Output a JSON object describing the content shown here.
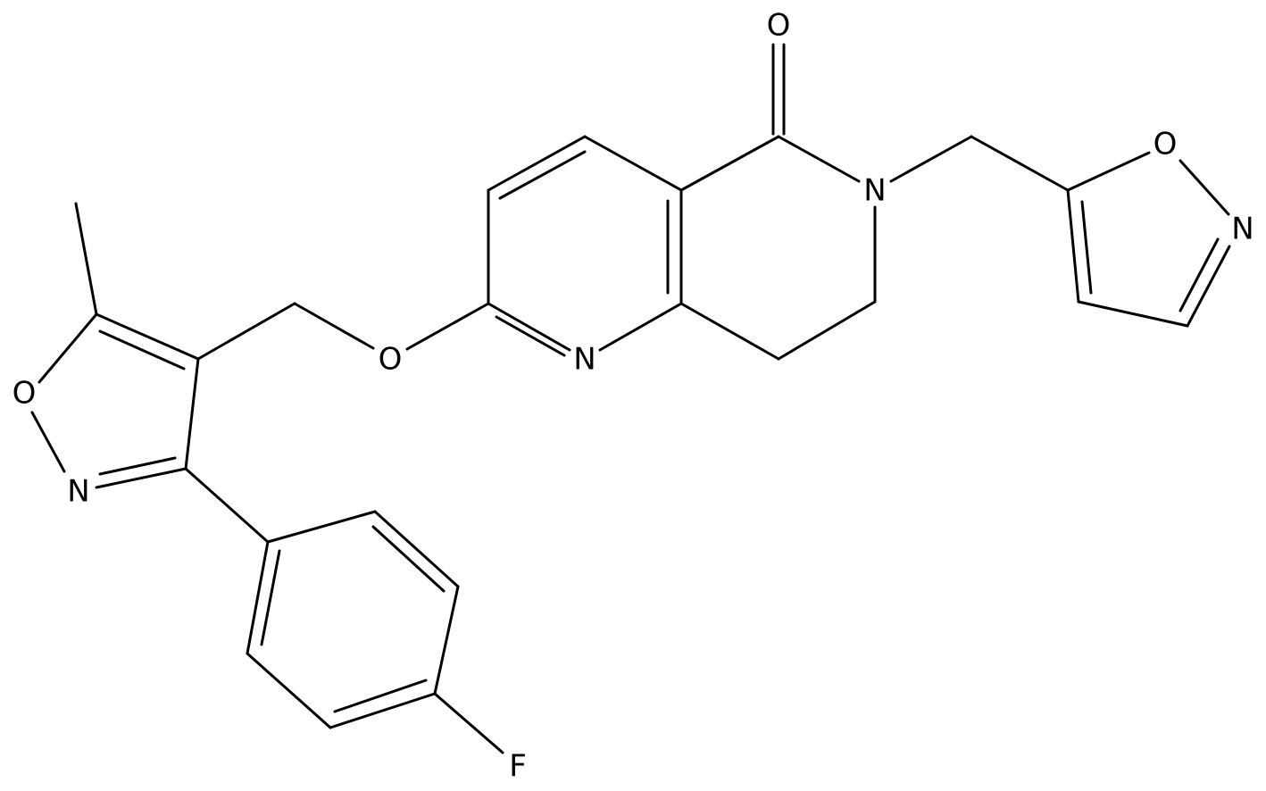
{
  "atoms": [
    "O",
    "N",
    "N",
    "O",
    "O",
    "N",
    "F",
    "O",
    "N"
  ]
}
